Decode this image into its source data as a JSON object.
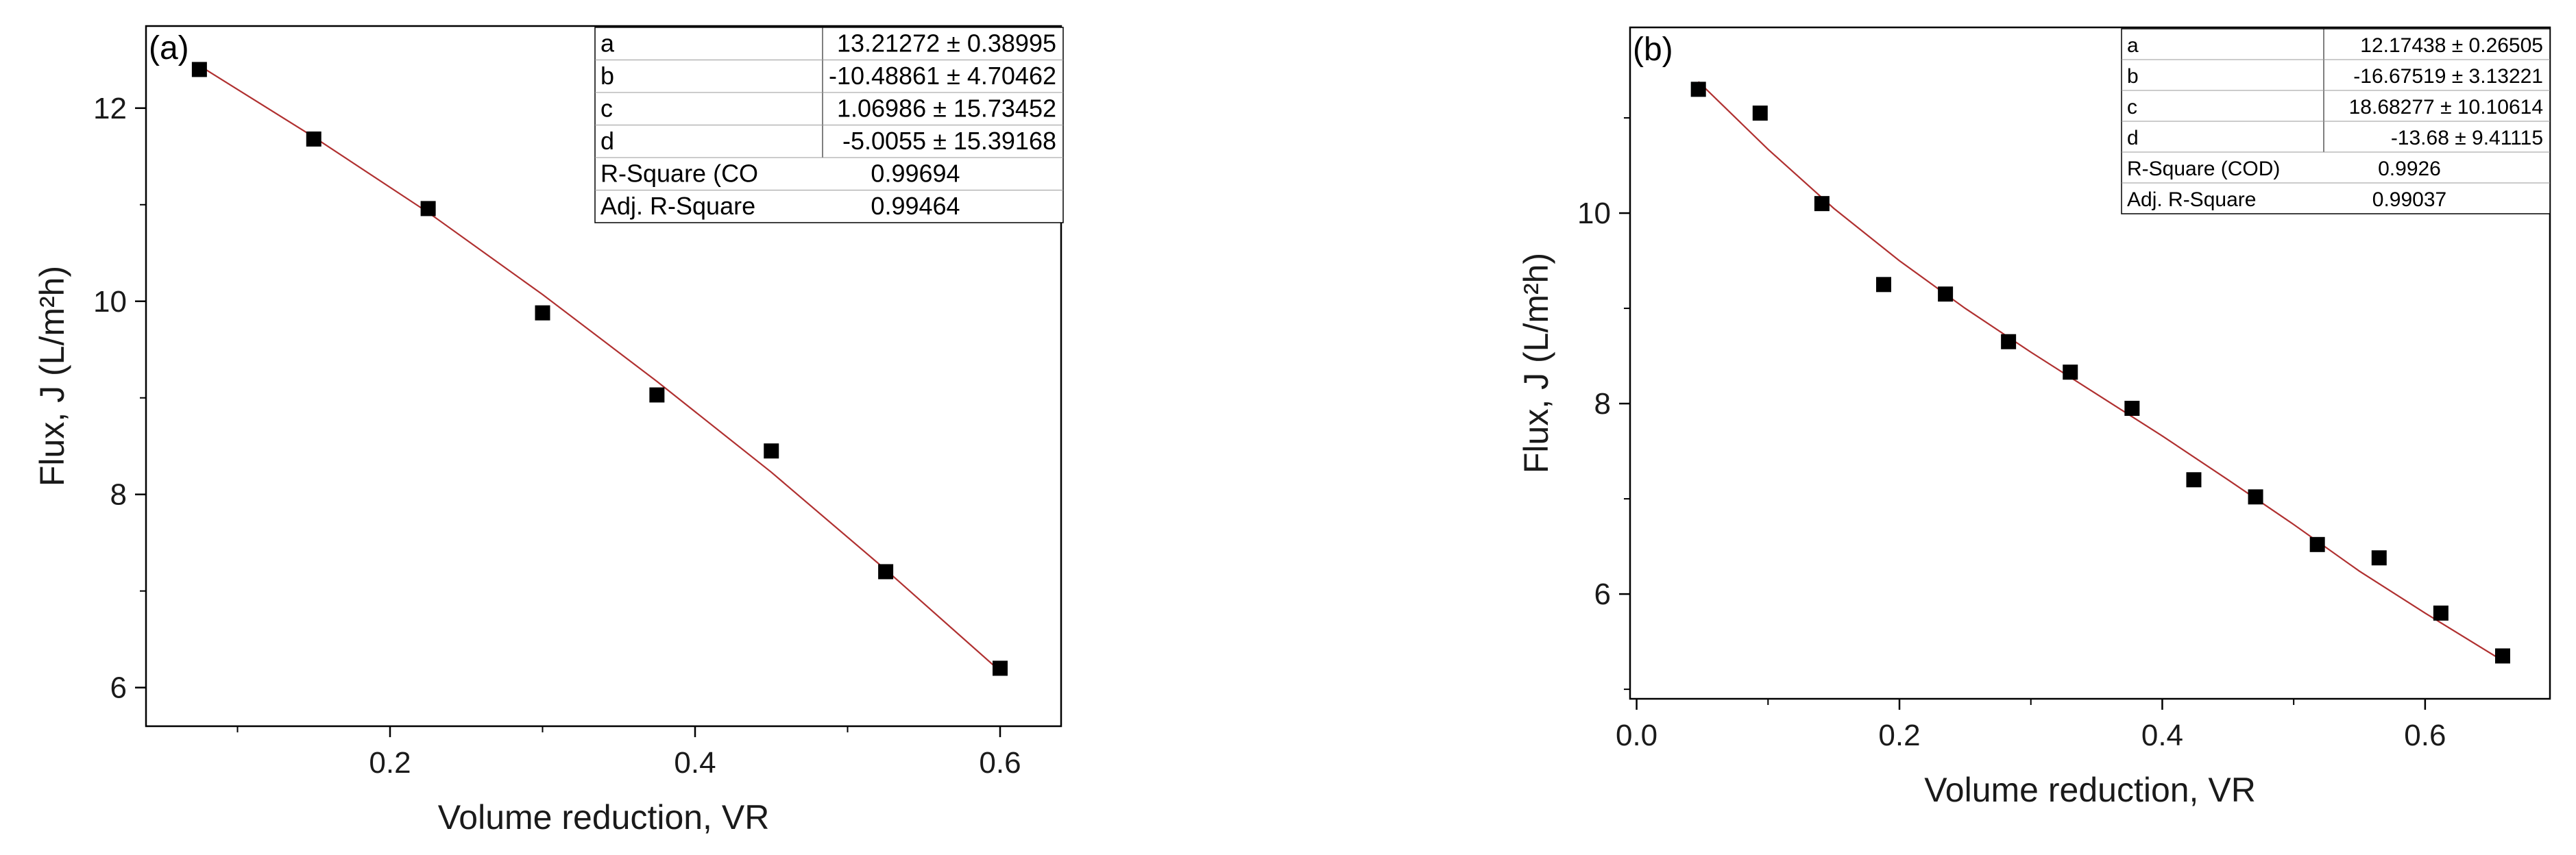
{
  "chart_data": [
    {
      "type": "scatter",
      "panel_label": "(a)",
      "xlabel": "Volume reduction, VR",
      "ylabel": "Flux, J (L/m²h)",
      "xlim": [
        0.04,
        0.64
      ],
      "ylim": [
        5.6,
        12.85
      ],
      "x_ticks": [
        0.2,
        0.4,
        0.6
      ],
      "x_tick_labels": [
        "0.2",
        "0.4",
        "0.6"
      ],
      "y_ticks": [
        6,
        8,
        10,
        12
      ],
      "y_tick_labels": [
        "6",
        "8",
        "10",
        "12"
      ],
      "series": [
        {
          "points": [
            {
              "x": 0.075,
              "y": 12.4
            },
            {
              "x": 0.15,
              "y": 11.68
            },
            {
              "x": 0.225,
              "y": 10.96
            },
            {
              "x": 0.3,
              "y": 9.88
            },
            {
              "x": 0.375,
              "y": 9.03
            },
            {
              "x": 0.45,
              "y": 8.45
            },
            {
              "x": 0.525,
              "y": 7.2
            },
            {
              "x": 0.6,
              "y": 6.2
            }
          ],
          "fit_line": [
            {
              "x": 0.075,
              "y": 12.44
            },
            {
              "x": 0.15,
              "y": 11.7
            },
            {
              "x": 0.225,
              "y": 10.92
            },
            {
              "x": 0.3,
              "y": 10.07
            },
            {
              "x": 0.375,
              "y": 9.17
            },
            {
              "x": 0.45,
              "y": 8.23
            },
            {
              "x": 0.525,
              "y": 7.22
            },
            {
              "x": 0.6,
              "y": 6.17
            }
          ]
        }
      ],
      "fit_table": [
        {
          "name": "a",
          "value": "13.21272 ± 0.38995"
        },
        {
          "name": "b",
          "value": "-10.48861 ± 4.70462"
        },
        {
          "name": "c",
          "value": "1.06986 ± 15.73452"
        },
        {
          "name": "d",
          "value": "-5.0055 ± 15.39168"
        },
        {
          "name": "R-Square (CO",
          "value": "0.99694"
        },
        {
          "name": "Adj. R-Square",
          "value": "0.99464"
        }
      ],
      "colors": {
        "marker": "#000000",
        "fit_line": "#b03030"
      }
    },
    {
      "type": "scatter",
      "panel_label": "(b)",
      "xlabel": "Volume reduction, VR",
      "ylabel": "Flux, J (L/m²h)",
      "xlim": [
        -0.005,
        0.695
      ],
      "ylim": [
        4.9,
        11.95
      ],
      "x_ticks": [
        0.0,
        0.2,
        0.4,
        0.6
      ],
      "x_tick_labels": [
        "0.0",
        "0.2",
        "0.4",
        "0.6"
      ],
      "y_ticks": [
        6,
        8,
        10
      ],
      "y_tick_labels": [
        "6",
        "8",
        "10"
      ],
      "series": [
        {
          "points": [
            {
              "x": 0.047,
              "y": 11.3
            },
            {
              "x": 0.094,
              "y": 11.05
            },
            {
              "x": 0.141,
              "y": 10.1
            },
            {
              "x": 0.188,
              "y": 9.25
            },
            {
              "x": 0.235,
              "y": 9.15
            },
            {
              "x": 0.283,
              "y": 8.65
            },
            {
              "x": 0.33,
              "y": 8.33
            },
            {
              "x": 0.377,
              "y": 7.95
            },
            {
              "x": 0.424,
              "y": 7.2
            },
            {
              "x": 0.471,
              "y": 7.02
            },
            {
              "x": 0.518,
              "y": 6.52
            },
            {
              "x": 0.565,
              "y": 6.38
            },
            {
              "x": 0.612,
              "y": 5.8
            },
            {
              "x": 0.659,
              "y": 5.35
            }
          ],
          "fit_line": [
            {
              "x": 0.047,
              "y": 11.38
            },
            {
              "x": 0.1,
              "y": 10.67
            },
            {
              "x": 0.15,
              "y": 10.05
            },
            {
              "x": 0.2,
              "y": 9.5
            },
            {
              "x": 0.25,
              "y": 9.0
            },
            {
              "x": 0.3,
              "y": 8.54
            },
            {
              "x": 0.35,
              "y": 8.1
            },
            {
              "x": 0.4,
              "y": 7.66
            },
            {
              "x": 0.45,
              "y": 7.2
            },
            {
              "x": 0.5,
              "y": 6.73
            },
            {
              "x": 0.55,
              "y": 6.24
            },
            {
              "x": 0.6,
              "y": 5.8
            },
            {
              "x": 0.659,
              "y": 5.3
            }
          ]
        }
      ],
      "fit_table": [
        {
          "name": "a",
          "value": "12.17438 ± 0.26505"
        },
        {
          "name": "b",
          "value": "-16.67519 ± 3.13221"
        },
        {
          "name": "c",
          "value": "18.68277 ± 10.10614"
        },
        {
          "name": "d",
          "value": "-13.68 ± 9.41115"
        },
        {
          "name": "R-Square (COD)",
          "value": "0.9926"
        },
        {
          "name": "Adj. R-Square",
          "value": "0.99037"
        }
      ],
      "colors": {
        "marker": "#000000",
        "fit_line": "#b03030"
      }
    }
  ]
}
